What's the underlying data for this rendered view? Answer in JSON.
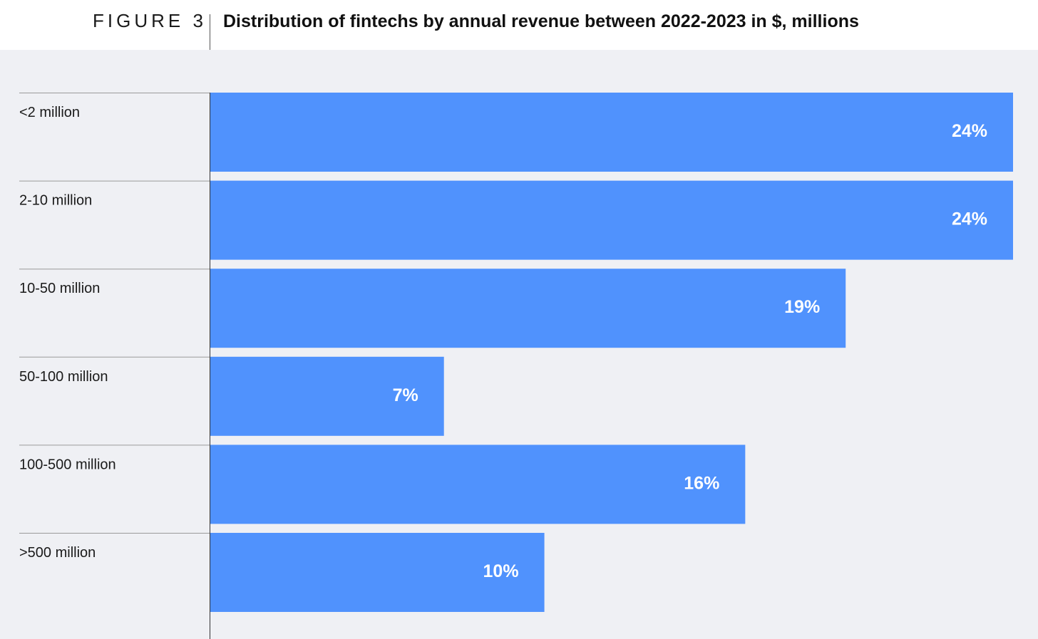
{
  "figure": {
    "label": "FIGURE 3",
    "title": "Distribution of fintechs by annual revenue between 2022-2023 in $, millions"
  },
  "colors": {
    "bar": "#5092fd",
    "background": "#eff0f4",
    "label_text": "#ffffff",
    "category_text": "#1a1a1a",
    "rule": "#9a9a9a"
  },
  "chart_data": {
    "type": "bar",
    "orientation": "horizontal",
    "title": "Distribution of fintechs by annual revenue between 2022-2023 in $, millions",
    "categories": [
      "<2 million",
      "2-10 million",
      "10-50 million",
      "50-100 million",
      "100-500 million",
      ">500 million"
    ],
    "values": [
      24,
      24,
      19,
      7,
      16,
      10
    ],
    "data_labels": [
      "24%",
      "24%",
      "19%",
      "7%",
      "16%",
      "10%"
    ],
    "unit": "%",
    "xlim": [
      0,
      24
    ],
    "xlabel": "",
    "ylabel": "",
    "grid": false,
    "legend": "none"
  }
}
